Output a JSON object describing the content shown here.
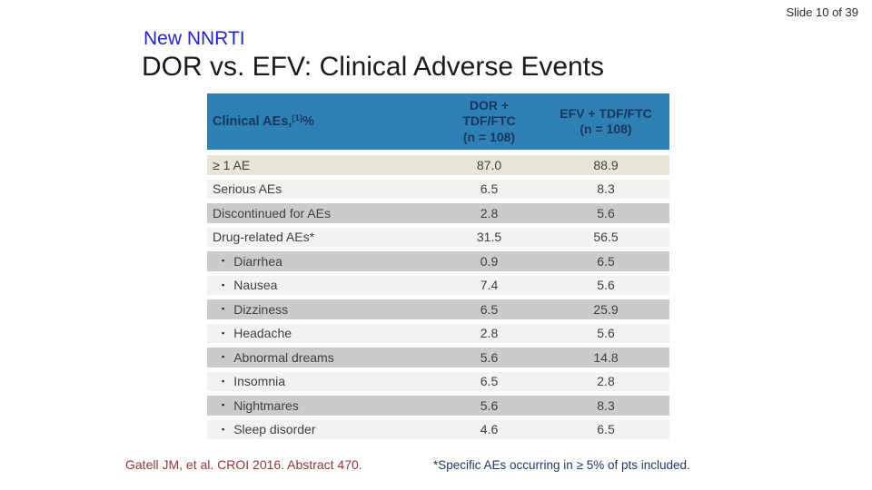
{
  "slide": {
    "counter": "Slide 10 of 39",
    "kicker": "New NNRTI",
    "title": "DOR vs. EFV: Clinical Adverse Events",
    "reference": "Gatell JM, et al. CROI 2016. Abstract 470.",
    "footnote": "*Specific AEs occurring in ≥ 5% of pts included."
  },
  "table": {
    "header": {
      "label": "Clinical AEs,",
      "label_sup": "[1]",
      "label_suffix": " %",
      "dor": "DOR +\nTDF/FTC\n(n = 108)",
      "efv": "EFV + TDF/FTC\n(n = 108)"
    },
    "bullet_glyph": "▪",
    "rows": [
      {
        "label": "≥ 1 AE",
        "sub": false,
        "dor": "87.0",
        "efv": "88.9",
        "shade": "cream"
      },
      {
        "label": "Serious AEs",
        "sub": false,
        "dor": "6.5",
        "efv": "8.3",
        "shade": "light"
      },
      {
        "label": "Discontinued for AEs",
        "sub": false,
        "dor": "2.8",
        "efv": "5.6",
        "shade": "dark"
      },
      {
        "label": "Drug-related AEs*",
        "sub": false,
        "dor": "31.5",
        "efv": "56.5",
        "shade": "light"
      },
      {
        "label": "Diarrhea",
        "sub": true,
        "dor": "0.9",
        "efv": "6.5",
        "shade": "dark"
      },
      {
        "label": "Nausea",
        "sub": true,
        "dor": "7.4",
        "efv": "5.6",
        "shade": "light"
      },
      {
        "label": "Dizziness",
        "sub": true,
        "dor": "6.5",
        "efv": "25.9",
        "shade": "dark"
      },
      {
        "label": "Headache",
        "sub": true,
        "dor": "2.8",
        "efv": "5.6",
        "shade": "light"
      },
      {
        "label": "Abnormal dreams",
        "sub": true,
        "dor": "5.6",
        "efv": "14.8",
        "shade": "dark"
      },
      {
        "label": "Insomnia",
        "sub": true,
        "dor": "6.5",
        "efv": "2.8",
        "shade": "light"
      },
      {
        "label": "Nightmares",
        "sub": true,
        "dor": "5.6",
        "efv": "8.3",
        "shade": "dark"
      },
      {
        "label": "Sleep disorder",
        "sub": true,
        "dor": "4.6",
        "efv": "6.5",
        "shade": "light"
      }
    ]
  },
  "colors": {
    "header_bg": "#2E80B5",
    "header_text": "#17365D",
    "row_cream": "#E8E4D6",
    "row_light": "#F2F2F0",
    "row_dark": "#CBCBC9",
    "kicker_blue": "#2424C8",
    "reference_red": "#943634",
    "footnote_navy": "#1F3864"
  }
}
